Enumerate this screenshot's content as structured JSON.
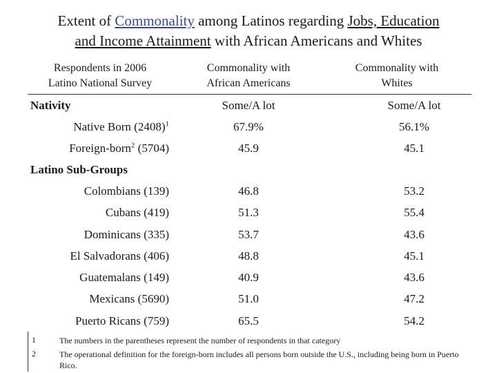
{
  "title": {
    "p1": "Extent of ",
    "p2": "Commonality",
    "p3": " among Latinos regarding ",
    "p4": "Jobs, Education",
    "p5": "and Income Attainment",
    "p6": " with African Americans and Whites"
  },
  "headers": {
    "col0_line1": "Respondents in 2006",
    "col0_line2": "Latino National Survey",
    "col1_line1": "Commonality with",
    "col1_line2": "African Americans",
    "col2_line1": "Commonality with",
    "col2_line2": "Whites"
  },
  "sections": {
    "nativity": {
      "label": "Nativity",
      "c1": "Some/A lot",
      "c2": "Some/A lot",
      "rows": [
        {
          "label": "Native Born (2408)",
          "sup": "1",
          "suffix": "",
          "c1": "67.9%",
          "c2": "56.1%"
        },
        {
          "label": "Foreign-born",
          "sup": "2",
          "suffix": " (5704)",
          "c1": "45.9",
          "c2": "45.1"
        }
      ]
    },
    "subgroups": {
      "label": "Latino Sub-Groups",
      "rows": [
        {
          "label": "Colombians (139)",
          "c1": "46.8",
          "c2": "53.2"
        },
        {
          "label": "Cubans (419)",
          "c1": "51.3",
          "c2": "55.4"
        },
        {
          "label": "Dominicans (335)",
          "c1": "53.7",
          "c2": "43.6"
        },
        {
          "label": "El Salvadorans (406)",
          "c1": "48.8",
          "c2": "45.1"
        },
        {
          "label": "Guatemalans (149)",
          "c1": "40.9",
          "c2": "43.6"
        },
        {
          "label": "Mexicans (5690)",
          "c1": "51.0",
          "c2": "47.2"
        },
        {
          "label": "Puerto Ricans (759)",
          "c1": "65.5",
          "c2": "54.2"
        }
      ]
    }
  },
  "footnotes": [
    {
      "num": "1",
      "text": "The numbers in the parentheses represent the number of respondents in that category"
    },
    {
      "num": "2",
      "text": "The operational definition for the foreign-born includes all persons born outside the U.S., including being born in Puerto Rico."
    }
  ]
}
